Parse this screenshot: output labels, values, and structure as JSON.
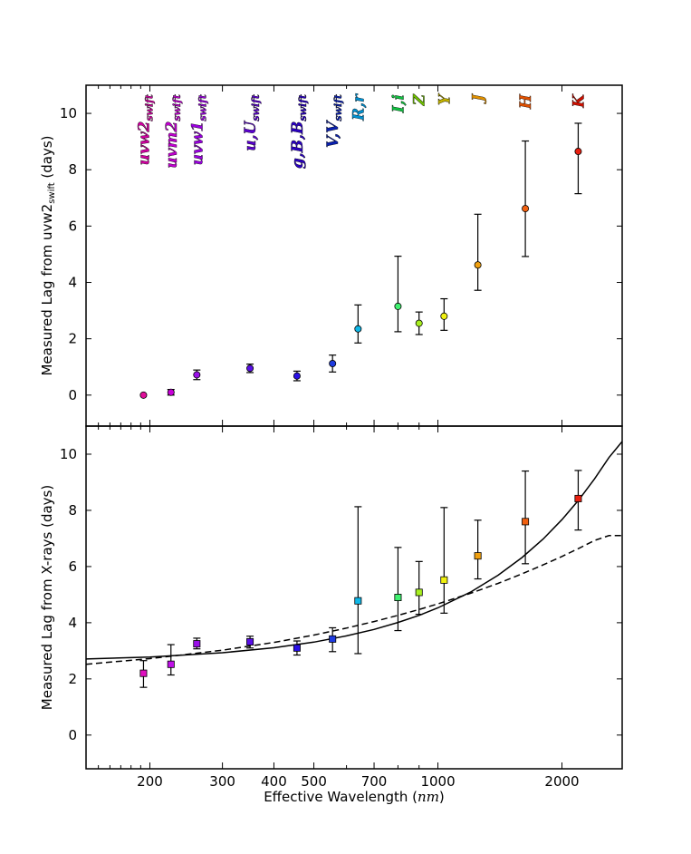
{
  "chart_data": [
    {
      "type": "scatter",
      "panel": "top",
      "ylabel": "Measured Lag from uvw2",
      "ylabel_sub": "swift",
      "ylabel_suffix": " (days)",
      "ylim": [
        -1.1,
        11.0
      ],
      "yticks": [
        0,
        2,
        4,
        6,
        8,
        10
      ],
      "points": [
        {
          "band": "uvw2",
          "x": 193,
          "y": 0.0,
          "err_lo": 0.0,
          "err_hi": 0.0,
          "color": "#e0109a"
        },
        {
          "band": "uvm2",
          "x": 225,
          "y": 0.1,
          "err_lo": 0.1,
          "err_hi": 0.1,
          "color": "#c800d8"
        },
        {
          "band": "uvw1",
          "x": 260,
          "y": 0.72,
          "err_lo": 0.17,
          "err_hi": 0.17,
          "color": "#9a10e8"
        },
        {
          "band": "u,U",
          "x": 350,
          "y": 0.95,
          "err_lo": 0.15,
          "err_hi": 0.15,
          "color": "#5a10e8"
        },
        {
          "band": "g,B",
          "x": 455,
          "y": 0.68,
          "err_lo": 0.17,
          "err_hi": 0.17,
          "color": "#2a10e8"
        },
        {
          "band": "V",
          "x": 555,
          "y": 1.12,
          "err_lo": 0.3,
          "err_hi": 0.3,
          "color": "#1e3be0"
        },
        {
          "band": "R,r",
          "x": 640,
          "y": 2.35,
          "err_lo": 0.5,
          "err_hi": 0.85,
          "color": "#10b8e8"
        },
        {
          "band": "I,i",
          "x": 800,
          "y": 3.15,
          "err_lo": 0.9,
          "err_hi": 1.78,
          "color": "#40f070"
        },
        {
          "band": "Z",
          "x": 900,
          "y": 2.55,
          "err_lo": 0.4,
          "err_hi": 0.4,
          "color": "#a8f020"
        },
        {
          "band": "Y",
          "x": 1035,
          "y": 2.8,
          "err_lo": 0.5,
          "err_hi": 0.62,
          "color": "#f0f010"
        },
        {
          "band": "J",
          "x": 1250,
          "y": 4.62,
          "err_lo": 0.9,
          "err_hi": 1.8,
          "color": "#f0a010"
        },
        {
          "band": "H",
          "x": 1630,
          "y": 6.62,
          "err_lo": 1.7,
          "err_hi": 2.4,
          "color": "#f06010"
        },
        {
          "band": "K",
          "x": 2190,
          "y": 8.65,
          "err_lo": 1.5,
          "err_hi": 1.0,
          "color": "#e82010"
        }
      ],
      "band_labels": [
        {
          "main": "uvw2",
          "sub": "swift",
          "x": 193,
          "color": "#d000a0"
        },
        {
          "main": "uvm2",
          "sub": "swift",
          "x": 225,
          "color": "#c000d0"
        },
        {
          "main": "uvw1",
          "sub": "swift",
          "x": 260,
          "color": "#9a00e0"
        },
        {
          "main": "u,U",
          "sub": "swift",
          "x": 350,
          "color": "#5a00d0"
        },
        {
          "main": "g,B,B",
          "sub": "swift",
          "x": 455,
          "color": "#2a00c0"
        },
        {
          "main": "V,V",
          "sub": "swift",
          "x": 555,
          "color": "#0a20b0"
        },
        {
          "main": "R,r",
          "sub": "",
          "x": 640,
          "color": "#0090d0"
        },
        {
          "main": "I,i",
          "sub": "",
          "x": 800,
          "color": "#10c040"
        },
        {
          "main": "Z",
          "sub": "",
          "x": 900,
          "color": "#70c000"
        },
        {
          "main": "Y",
          "sub": "",
          "x": 1035,
          "color": "#c0b000"
        },
        {
          "main": "J",
          "sub": "",
          "x": 1250,
          "color": "#e09000"
        },
        {
          "main": "H",
          "sub": "",
          "x": 1630,
          "color": "#e05000"
        },
        {
          "main": "K",
          "sub": "",
          "x": 2190,
          "color": "#d01000"
        }
      ]
    },
    {
      "type": "scatter",
      "panel": "bottom",
      "xlabel": "Effective Wavelength ",
      "xlabel_unit": "nm",
      "ylabel": "Measured Lag from X-rays (days)",
      "xlim": [
        140,
        2800
      ],
      "xscale": "log",
      "xticks": [
        200,
        300,
        400,
        500,
        700,
        1000,
        2000
      ],
      "ylim": [
        -1.2,
        11.0
      ],
      "yticks": [
        0,
        2,
        4,
        6,
        8,
        10
      ],
      "points": [
        {
          "band": "uvw2",
          "x": 193,
          "y": 2.2,
          "err_lo": 0.5,
          "err_hi": 0.45,
          "color": "#e010c0"
        },
        {
          "band": "uvm2",
          "x": 225,
          "y": 2.52,
          "err_lo": 0.38,
          "err_hi": 0.7,
          "color": "#c010e8"
        },
        {
          "band": "uvw1",
          "x": 260,
          "y": 3.25,
          "err_lo": 0.18,
          "err_hi": 0.2,
          "color": "#9a10e8"
        },
        {
          "band": "u,U",
          "x": 350,
          "y": 3.32,
          "err_lo": 0.22,
          "err_hi": 0.2,
          "color": "#5a10e8"
        },
        {
          "band": "g,B",
          "x": 455,
          "y": 3.1,
          "err_lo": 0.25,
          "err_hi": 0.25,
          "color": "#2a10e8"
        },
        {
          "band": "V",
          "x": 555,
          "y": 3.42,
          "err_lo": 0.45,
          "err_hi": 0.4,
          "color": "#1e3be0"
        },
        {
          "band": "R,r",
          "x": 640,
          "y": 4.78,
          "err_lo": 1.88,
          "err_hi": 3.35,
          "color": "#10b8e8"
        },
        {
          "band": "I,i",
          "x": 800,
          "y": 4.9,
          "err_lo": 1.18,
          "err_hi": 1.78,
          "color": "#40f070"
        },
        {
          "band": "Z",
          "x": 900,
          "y": 5.08,
          "err_lo": 0.78,
          "err_hi": 1.1,
          "color": "#a8f020"
        },
        {
          "band": "Y",
          "x": 1035,
          "y": 5.52,
          "err_lo": 1.18,
          "err_hi": 2.58,
          "color": "#f0f010"
        },
        {
          "band": "J",
          "x": 1250,
          "y": 6.38,
          "err_lo": 0.82,
          "err_hi": 1.27,
          "color": "#f0a010"
        },
        {
          "band": "H",
          "x": 1630,
          "y": 7.6,
          "err_lo": 1.5,
          "err_hi": 1.8,
          "color": "#f06010"
        },
        {
          "band": "K",
          "x": 2190,
          "y": 8.42,
          "err_lo": 1.12,
          "err_hi": 1.0,
          "color": "#e82010"
        }
      ],
      "curves": [
        {
          "name": "solid fit",
          "style": "solid",
          "x": [
            140,
            200,
            300,
            400,
            500,
            600,
            700,
            800,
            900,
            1000,
            1200,
            1400,
            1600,
            1800,
            2000,
            2200,
            2400,
            2600,
            2800
          ],
          "y": [
            2.71,
            2.78,
            2.93,
            3.11,
            3.31,
            3.53,
            3.76,
            4.01,
            4.26,
            4.53,
            5.09,
            5.69,
            6.32,
            6.98,
            7.67,
            8.38,
            9.12,
            9.88,
            10.45
          ]
        },
        {
          "name": "dashed fit",
          "style": "dashed",
          "x": [
            140,
            200,
            300,
            400,
            500,
            600,
            700,
            800,
            900,
            1000,
            1200,
            1400,
            1600,
            1800,
            2000,
            2200,
            2400,
            2600,
            2800
          ],
          "y": [
            2.52,
            2.72,
            3.02,
            3.3,
            3.56,
            3.81,
            4.04,
            4.26,
            4.47,
            4.67,
            5.05,
            5.4,
            5.74,
            6.06,
            6.36,
            6.65,
            6.93,
            7.1,
            7.1
          ]
        }
      ]
    }
  ]
}
